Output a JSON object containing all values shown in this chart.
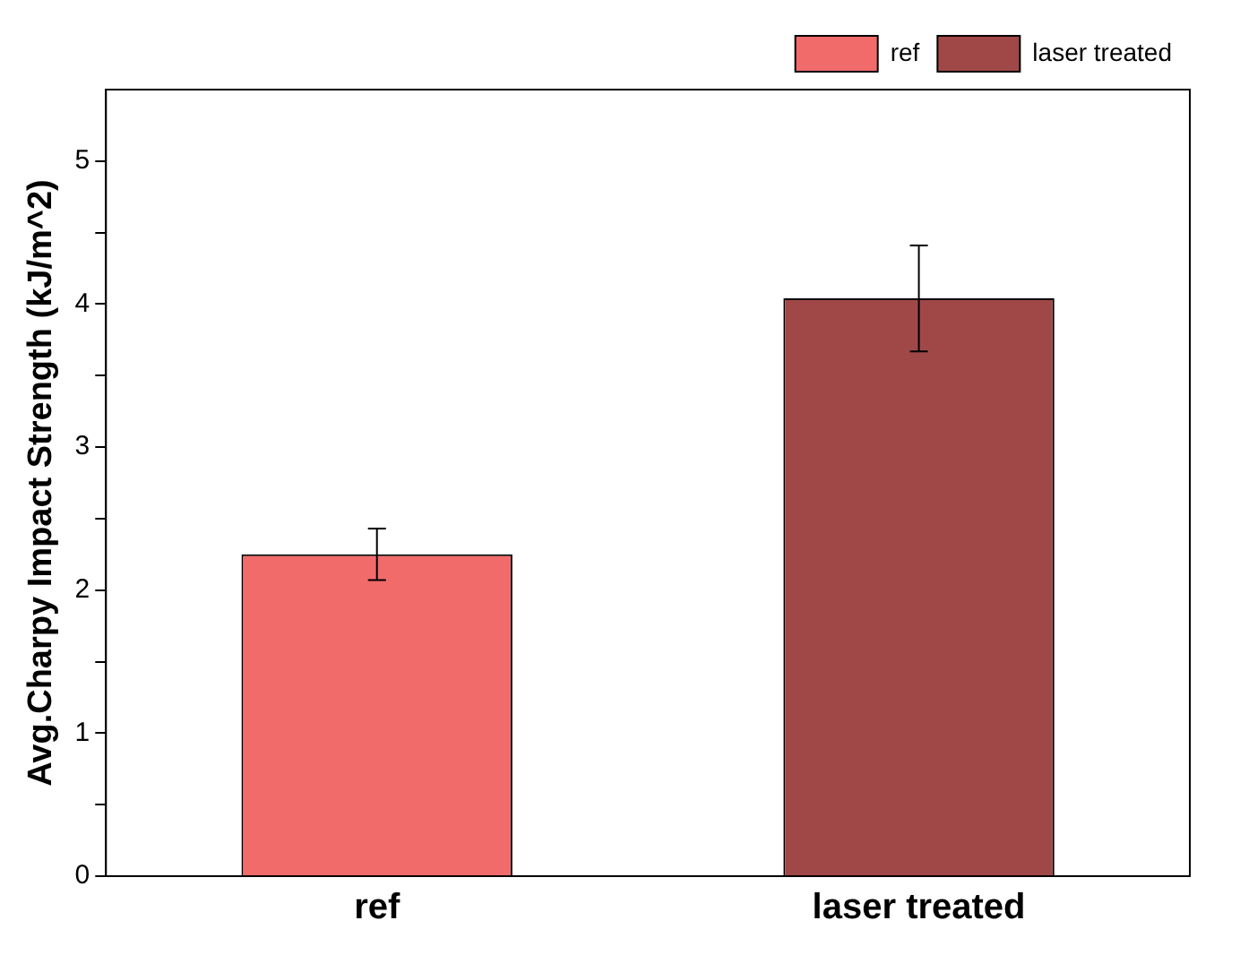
{
  "chart_data": {
    "type": "bar",
    "ylabel": "Avg.Charpy Impact Strength (kJ/m^2)",
    "categories": [
      "ref",
      "laser treated"
    ],
    "series": [
      {
        "name": "ref",
        "color": "#f26b6b",
        "values": [
          2.25,
          null
        ],
        "errors": [
          0.18,
          null
        ]
      },
      {
        "name": "laser treated",
        "color": "#a04848",
        "values": [
          null,
          4.04
        ],
        "errors": [
          null,
          0.37
        ]
      }
    ],
    "ylim": [
      0,
      5.5
    ],
    "yticks": [
      0,
      {
        "value": 0.5,
        "label": null
      },
      1,
      {
        "value": 1.5,
        "label": null
      },
      2,
      {
        "value": 2.5,
        "label": null
      },
      3,
      {
        "value": 3.5,
        "label": null
      },
      4,
      {
        "value": 4.5,
        "label": null
      },
      5
    ],
    "legend": "top right",
    "grid": false
  }
}
